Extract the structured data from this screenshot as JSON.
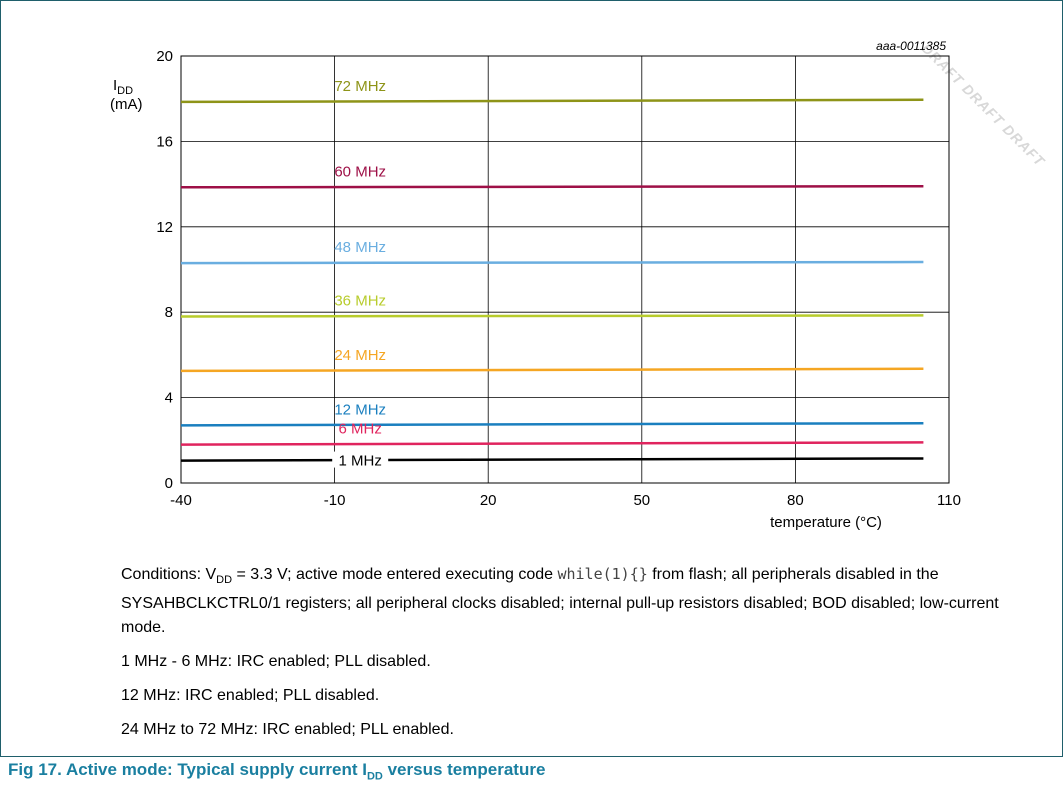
{
  "watermark": "DRAFT DRAFT DRAFT",
  "chart_data": {
    "type": "line",
    "figure_id": "aaa-0011385",
    "ylabel_main": "I",
    "ylabel_sub": "DD",
    "ylabel_unit": "(mA)",
    "xlabel": "temperature (°C)",
    "xlim": [
      -40,
      110
    ],
    "ylim": [
      0,
      20
    ],
    "xticks": [
      -40,
      -10,
      20,
      50,
      80,
      110
    ],
    "yticks": [
      0,
      4,
      8,
      12,
      16,
      20
    ],
    "grid": true,
    "x": [
      -40,
      105
    ],
    "series": [
      {
        "name": "72 MHz",
        "color": "#8e9418",
        "values": [
          17.85,
          17.95
        ]
      },
      {
        "name": "60 MHz",
        "color": "#9e1047",
        "values": [
          13.85,
          13.9
        ]
      },
      {
        "name": "48 MHz",
        "color": "#6aaee0",
        "values": [
          10.3,
          10.35
        ]
      },
      {
        "name": "36 MHz",
        "color": "#b8cc2c",
        "values": [
          7.8,
          7.85
        ]
      },
      {
        "name": "24 MHz",
        "color": "#f5a623",
        "values": [
          5.25,
          5.35
        ]
      },
      {
        "name": "12 MHz",
        "color": "#1a7fbf",
        "values": [
          2.7,
          2.8
        ]
      },
      {
        "name": "6 MHz",
        "color": "#e0245e",
        "values": [
          1.8,
          1.9
        ]
      },
      {
        "name": "1 MHz",
        "color": "#000000",
        "values": [
          1.05,
          1.15
        ]
      }
    ],
    "label_x": -5
  },
  "notes": {
    "cond_pre": "Conditions: V",
    "cond_sub": "DD",
    "cond_mid": " = 3.3 V; active mode entered executing code ",
    "cond_code": "while(1){}",
    "cond_post": " from flash; all peripherals disabled in the SYSAHBCLKCTRL0/1 registers; all peripheral clocks disabled; internal pull-up resistors disabled; BOD disabled; low-current mode.",
    "line1": "1 MHz - 6 MHz: IRC enabled; PLL disabled.",
    "line2": "12 MHz: IRC enabled; PLL disabled.",
    "line3": "24 MHz to 72 MHz: IRC enabled; PLL enabled."
  },
  "caption": {
    "pre": "Fig 17.   Active mode: Typical supply current I",
    "sub": "DD",
    "post": " versus temperature"
  }
}
